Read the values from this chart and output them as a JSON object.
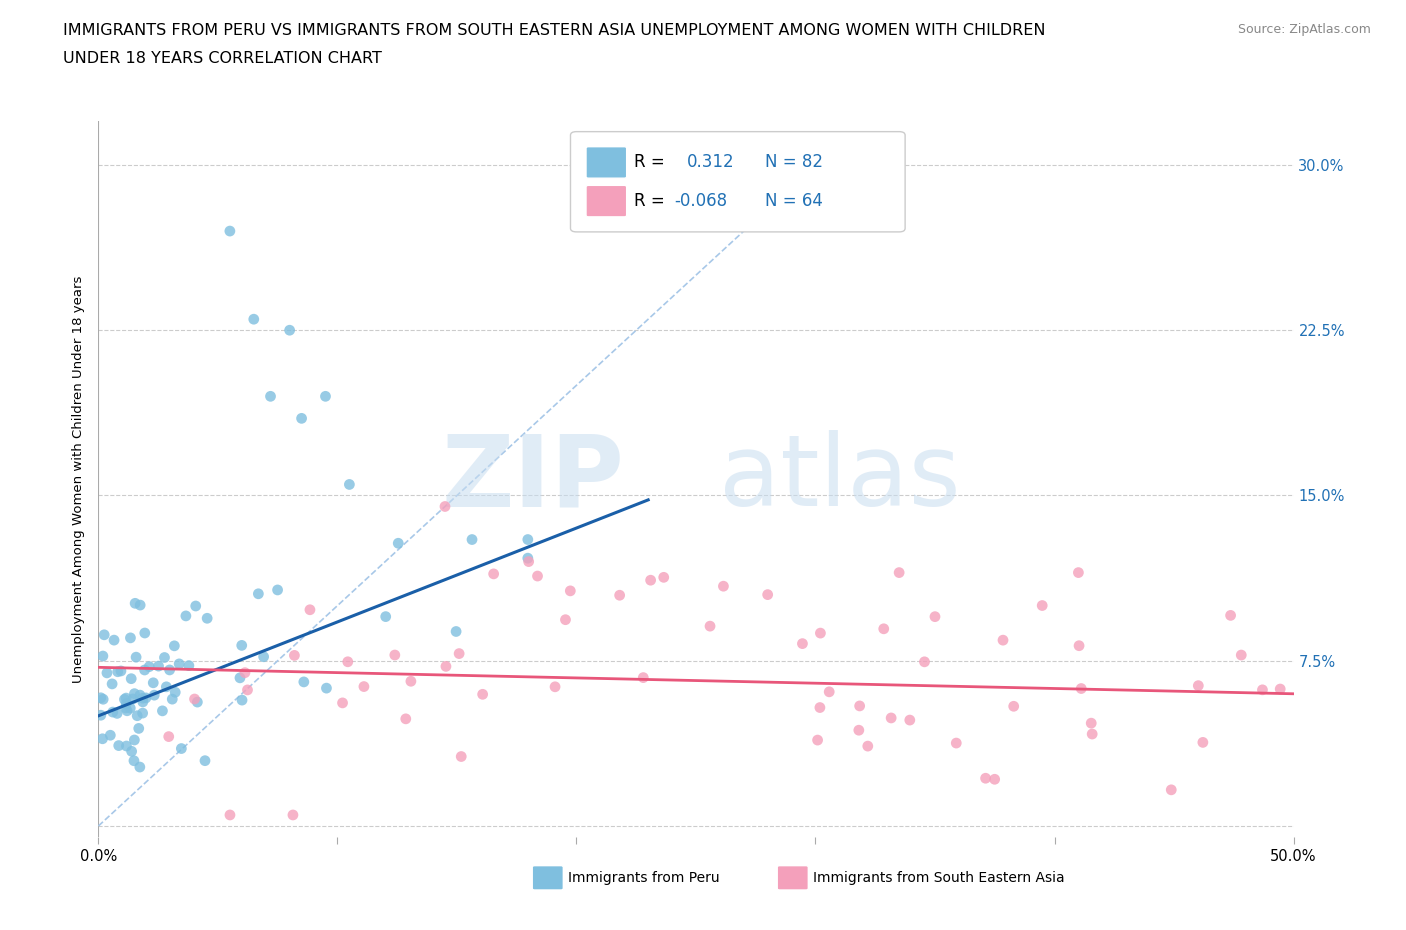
{
  "title_line1": "IMMIGRANTS FROM PERU VS IMMIGRANTS FROM SOUTH EASTERN ASIA UNEMPLOYMENT AMONG WOMEN WITH CHILDREN",
  "title_line2": "UNDER 18 YEARS CORRELATION CHART",
  "source": "Source: ZipAtlas.com",
  "ylabel": "Unemployment Among Women with Children Under 18 years",
  "xlim": [
    0.0,
    0.5
  ],
  "ylim": [
    -0.005,
    0.32
  ],
  "xticks": [
    0.0,
    0.1,
    0.2,
    0.3,
    0.4,
    0.5
  ],
  "xticklabels": [
    "0.0%",
    "",
    "",
    "",
    "",
    "50.0%"
  ],
  "yticks": [
    0.0,
    0.075,
    0.15,
    0.225,
    0.3
  ],
  "yticklabels_right": [
    "",
    "7.5%",
    "15.0%",
    "22.5%",
    "30.0%"
  ],
  "peru_color": "#7fbfdf",
  "sea_color": "#f4a0bb",
  "peru_line_color": "#1a5fa8",
  "sea_line_color": "#e8567a",
  "diagonal_color": "#a8c8e8",
  "watermark_zip": "ZIP",
  "watermark_atlas": "atlas",
  "legend1_r": "R =",
  "legend1_val": "0.312",
  "legend1_n": "N = 82",
  "legend2_r": "R =",
  "legend2_val": "-0.068",
  "legend2_n": "N = 64",
  "legend_bottom_label1": "Immigrants from Peru",
  "legend_bottom_label2": "Immigrants from South Eastern Asia",
  "peru_line_x": [
    0.0,
    0.23
  ],
  "peru_line_y": [
    0.05,
    0.148
  ],
  "sea_line_x": [
    0.0,
    0.5
  ],
  "sea_line_y": [
    0.072,
    0.06
  ],
  "diag_line_x": [
    0.0,
    0.3
  ],
  "diag_line_y": [
    0.0,
    0.3
  ],
  "title_fontsize": 11.5,
  "axis_label_fontsize": 9.5,
  "tick_fontsize": 10.5
}
